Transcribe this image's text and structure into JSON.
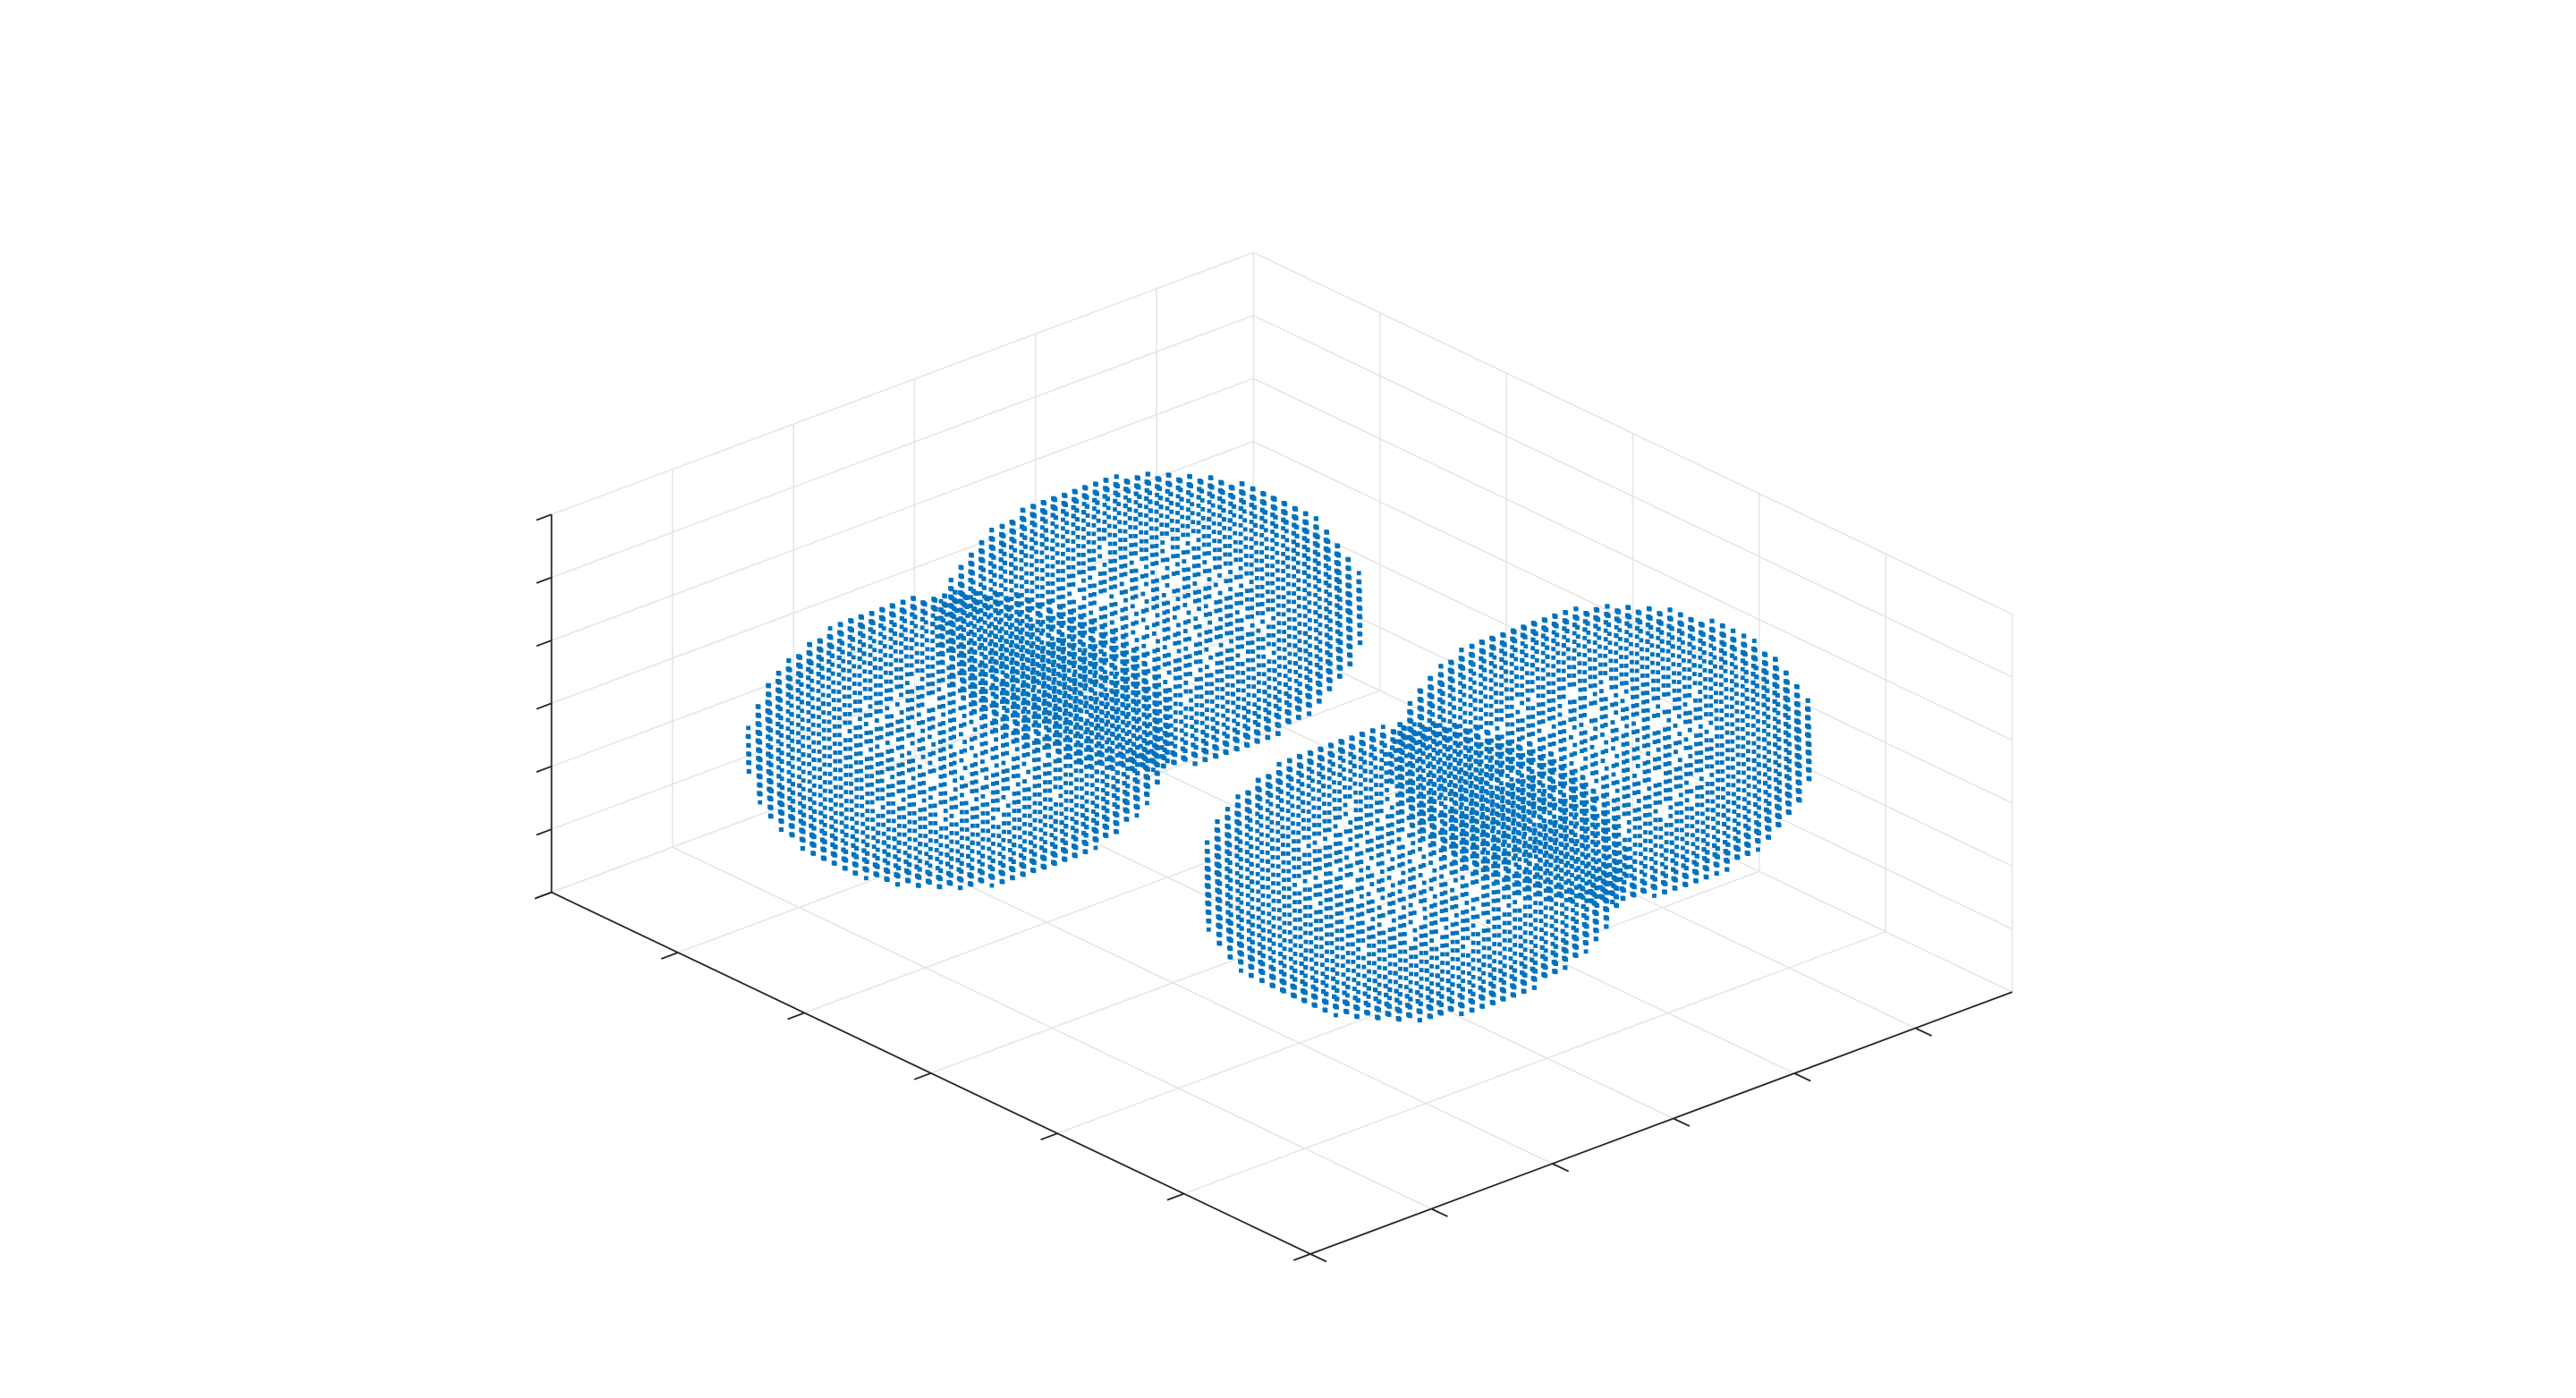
{
  "chart_data": {
    "type": "scatter",
    "dimension": "3d",
    "title": "",
    "xlabel": "",
    "ylabel": "",
    "zlabel": "",
    "grid": true,
    "box": false,
    "tick_labels_shown": false,
    "marker": "dot",
    "color": "#0072bd",
    "x_ticks": [
      0,
      1,
      2,
      3,
      4,
      5,
      6
    ],
    "y_ticks": [
      0,
      1,
      2,
      3,
      4,
      5
    ],
    "z_ticks": [
      0,
      1,
      2,
      3,
      4,
      5,
      6
    ],
    "xlim": [
      0,
      6
    ],
    "ylim": [
      0,
      5.8
    ],
    "zlim": [
      0,
      6
    ],
    "lobes": [
      {
        "center": [
          1.2,
          2.1,
          3.4
        ],
        "radii": [
          1.05,
          1.4,
          1.9
        ]
      },
      {
        "center": [
          1.7,
          4.2,
          3.3
        ],
        "radii": [
          1.05,
          1.4,
          1.9
        ]
      },
      {
        "center": [
          4.3,
          1.6,
          2.9
        ],
        "radii": [
          1.05,
          1.4,
          1.9
        ]
      },
      {
        "center": [
          4.8,
          3.7,
          2.8
        ],
        "radii": [
          1.05,
          1.4,
          1.9
        ]
      }
    ]
  }
}
